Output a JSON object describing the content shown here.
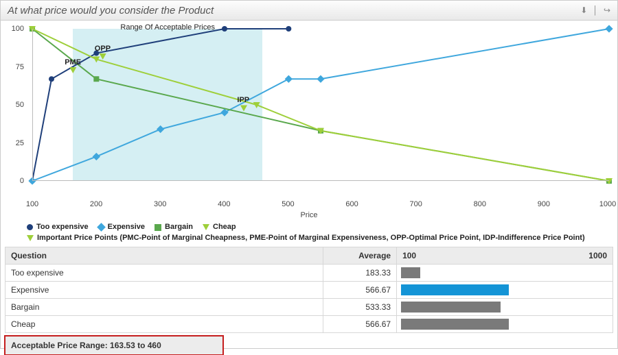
{
  "header": {
    "title": "At what price would you consider the Product",
    "icons": [
      "download-icon",
      "divider",
      "share-icon"
    ]
  },
  "chart": {
    "type": "line",
    "x_axis": {
      "title": "Price",
      "min": 100,
      "max": 1000,
      "tick_step": 100
    },
    "y_axis": {
      "min": 0,
      "max": 100,
      "tick_step": 25
    },
    "background_color": "#ffffff",
    "band": {
      "from": 163.53,
      "to": 460,
      "color": "#bfe6ec",
      "opacity": 0.65,
      "label": "Range Of Acceptable Prices"
    },
    "series": [
      {
        "id": "too_expensive",
        "name": "Too expensive",
        "color": "#1f3f7a",
        "marker": "dot",
        "x": [
          100,
          130,
          200,
          400,
          500
        ],
        "y": [
          0,
          67,
          84,
          100,
          100
        ],
        "line_width": 2
      },
      {
        "id": "expensive",
        "name": "Expensive",
        "color": "#3fa7dd",
        "marker": "diamond",
        "x": [
          100,
          200,
          300,
          400,
          500,
          550,
          1000
        ],
        "y": [
          0,
          16,
          34,
          45,
          67,
          67,
          100
        ],
        "line_width": 2
      },
      {
        "id": "bargain",
        "name": "Bargain",
        "color": "#5aa84d",
        "marker": "square",
        "x": [
          100,
          200,
          550,
          1000
        ],
        "y": [
          100,
          67,
          33,
          0
        ],
        "line_width": 2
      },
      {
        "id": "cheap",
        "name": "Cheap",
        "color": "#9ecf3a",
        "marker": "triangle-down",
        "x": [
          100,
          200,
          450,
          550,
          1000
        ],
        "y": [
          100,
          80,
          50,
          33,
          0
        ],
        "line_width": 2
      }
    ],
    "important_points": [
      {
        "id": "PME",
        "label": "PME",
        "x": 163.53,
        "y": 73,
        "color": "#9ecf3a"
      },
      {
        "id": "OPP",
        "label": "OPP",
        "x": 210,
        "y": 82,
        "color": "#9ecf3a"
      },
      {
        "id": "IPP",
        "label": "IPP",
        "x": 430,
        "y": 48,
        "color": "#9ecf3a"
      }
    ],
    "legend_note": "Important Price Points (PMC-Point of Marginal Cheapness, PME-Point of Marginal Expensiveness, OPP-Optimal Price Point, IDP-Indifference Price Point)"
  },
  "table": {
    "columns": [
      "Question",
      "Average"
    ],
    "bar_min": 100,
    "bar_max": 1000,
    "bar_min_label": "100",
    "bar_max_label": "1000",
    "rows": [
      {
        "q": "Too expensive",
        "avg": "183.33",
        "val": 183.33,
        "bar_color": "#7a7a7a"
      },
      {
        "q": "Expensive",
        "avg": "566.67",
        "val": 566.67,
        "bar_color": "#1494d6"
      },
      {
        "q": "Bargain",
        "avg": "533.33",
        "val": 533.33,
        "bar_color": "#7a7a7a"
      },
      {
        "q": "Cheap",
        "avg": "566.67",
        "val": 566.67,
        "bar_color": "#7a7a7a"
      }
    ]
  },
  "acceptable_range": {
    "label": "Acceptable Price Range: 163.53 to 460",
    "highlight_color": "#c51d1d"
  }
}
